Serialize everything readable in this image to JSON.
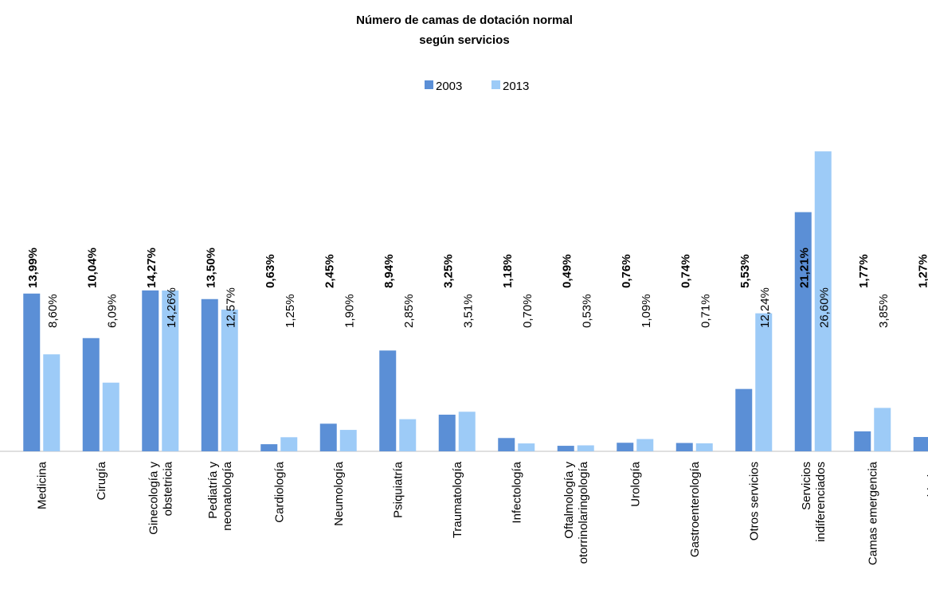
{
  "chart_data": {
    "type": "bar",
    "title": "Número de camas de dotación normal\nsegún servicios",
    "categories": [
      "Medicina",
      "Cirugía",
      "Ginecología y\nobstetricia",
      "Pediatría y\nneonatología",
      "Cardiología",
      "Neumología",
      "Psiquiatría",
      "Traumatología",
      "Infectología",
      "Oftalmología y\notorrinolaringología",
      "Urología",
      "Gastroenterología",
      "Otros servicios",
      "Servicios\nindiferenciados",
      "Camas emergencia",
      "Camas cuidados"
    ],
    "series": [
      {
        "name": "2003",
        "color": "#5b8fd6",
        "values": [
          13.99,
          10.04,
          14.27,
          13.5,
          0.63,
          2.45,
          8.94,
          3.25,
          1.18,
          0.49,
          0.76,
          0.74,
          5.53,
          21.21,
          1.77,
          1.27
        ],
        "value_labels": [
          "13,99%",
          "10,04%",
          "14,27%",
          "13,50%",
          "0,63%",
          "2,45%",
          "8,94%",
          "3,25%",
          "1,18%",
          "0,49%",
          "0,76%",
          "0,74%",
          "5,53%",
          "21,21%",
          "1,77%",
          "1,27%"
        ]
      },
      {
        "name": "2013",
        "color": "#9dcbf7",
        "values": [
          8.6,
          6.09,
          14.26,
          12.57,
          1.25,
          1.9,
          2.85,
          3.51,
          0.7,
          0.53,
          1.09,
          0.71,
          12.24,
          26.6,
          3.85,
          null
        ],
        "value_labels": [
          "8,60%",
          "6,09%",
          "14,26%",
          "12,57%",
          "1,25%",
          "1,90%",
          "2,85%",
          "3,51%",
          "0,70%",
          "0,53%",
          "1,09%",
          "0,71%",
          "12,24%",
          "26,60%",
          "3,85%",
          null
        ]
      }
    ],
    "ylim": [
      0,
      30
    ]
  }
}
